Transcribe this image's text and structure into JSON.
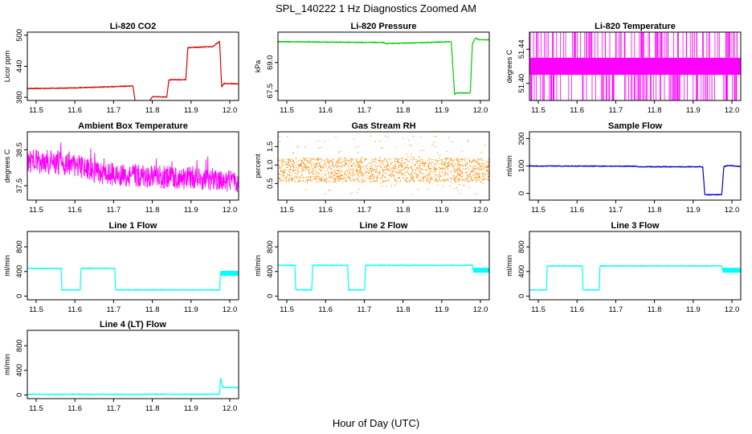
{
  "figure": {
    "title": "SPL_140222  1 Hz Diagnostics Zoomed AM",
    "xlabel": "Hour of Day (UTC)"
  },
  "chart_data": [
    {
      "type": "line",
      "title": "Li-820 CO2",
      "ylabel": "Licor ppm",
      "color": "#dd0000",
      "xlim": [
        11.5,
        12.0
      ],
      "ylim": [
        374,
        506
      ],
      "yticks": [
        "380",
        "440",
        "500"
      ],
      "ytick_values": [
        380,
        440,
        500
      ],
      "xticks": [
        "11.5",
        "11.6",
        "11.7",
        "11.8",
        "11.9",
        "12.0"
      ],
      "x": [
        11.5,
        11.6,
        11.75,
        11.755,
        11.79,
        11.795,
        11.83,
        11.835,
        11.875,
        11.88,
        11.94,
        11.945,
        11.955,
        11.96,
        11.965,
        12.0
      ],
      "values": [
        397,
        398,
        402,
        373,
        373,
        381,
        381,
        414,
        414,
        476,
        478,
        482,
        488,
        400,
        407,
        406
      ]
    },
    {
      "type": "line",
      "title": "Li-820 Pressure",
      "ylabel": "kPa",
      "color": "#00cc00",
      "xlim": [
        11.5,
        12.0
      ],
      "ylim": [
        67.0,
        70.6
      ],
      "yticks": [
        "67.5",
        "69.0"
      ],
      "ytick_values": [
        67.5,
        69.0
      ],
      "xticks": [
        "11.5",
        "11.6",
        "11.7",
        "11.8",
        "11.9",
        "12.0"
      ],
      "x": [
        11.5,
        11.75,
        11.755,
        11.85,
        11.91,
        11.918,
        11.922,
        11.955,
        11.96,
        11.968,
        11.975,
        12.0
      ],
      "values": [
        70.1,
        70.05,
        70.0,
        70.05,
        70.1,
        67.3,
        67.4,
        67.4,
        70.0,
        70.3,
        70.2,
        70.2
      ]
    },
    {
      "type": "line",
      "title": "Li-820 Temperature",
      "ylabel": "degrees C",
      "color": "#ff00ff",
      "xlim": [
        11.5,
        12.0
      ],
      "ylim": [
        51.38,
        51.46
      ],
      "yticks": [
        "51.40",
        "51.44"
      ],
      "ytick_values": [
        51.4,
        51.44
      ],
      "xticks": [
        "11.5",
        "11.6",
        "11.7",
        "11.8",
        "11.9",
        "12.0"
      ],
      "x": [
        11.5,
        12.0
      ],
      "values": [
        51.42,
        51.42
      ],
      "band_low": 51.41,
      "band_high": 51.43,
      "spike_min": 51.38,
      "spike_max": 51.46
    },
    {
      "type": "line",
      "title": "Ambient Box Temperature",
      "ylabel": "degrees C",
      "color": "#ff00ff",
      "xlim": [
        11.5,
        12.0
      ],
      "ylim": [
        37.1,
        39.0
      ],
      "yticks": [
        "37.5",
        "38.5"
      ],
      "ytick_values": [
        37.5,
        38.5
      ],
      "xticks": [
        "11.5",
        "11.6",
        "11.7",
        "11.8",
        "11.9",
        "12.0"
      ],
      "x": [
        11.5,
        11.6,
        11.7,
        11.8,
        11.9,
        12.0
      ],
      "values": [
        38.2,
        38.1,
        37.8,
        37.75,
        37.7,
        37.6
      ]
    },
    {
      "type": "scatter",
      "title": "Gas Stream RH",
      "ylabel": "percent",
      "color": "#ff8c00",
      "xlim": [
        11.5,
        12.0
      ],
      "ylim": [
        0.05,
        1.9
      ],
      "yticks": [
        "0.5",
        "1.0",
        "1.5"
      ],
      "ytick_values": [
        0.5,
        1.0,
        1.5
      ],
      "xticks": [
        "11.5",
        "11.6",
        "11.7",
        "11.8",
        "11.9",
        "12.0"
      ],
      "x": [
        11.5,
        12.0
      ],
      "values": [
        0.85,
        0.85
      ],
      "band_low": 0.55,
      "band_high": 1.2
    },
    {
      "type": "line",
      "title": "Sample Flow",
      "ylabel": "ml/min",
      "color": "#0000cc",
      "xlim": [
        11.5,
        12.0
      ],
      "ylim": [
        -25,
        225
      ],
      "yticks": [
        "0",
        "100",
        "200"
      ],
      "ytick_values": [
        0,
        100,
        200
      ],
      "xticks": [
        "11.5",
        "11.6",
        "11.7",
        "11.8",
        "11.9",
        "12.0"
      ],
      "x": [
        11.5,
        11.75,
        11.76,
        11.91,
        11.915,
        11.955,
        11.96,
        11.97,
        12.0
      ],
      "values": [
        100,
        99,
        97,
        97,
        -5,
        -5,
        98,
        102,
        98
      ]
    },
    {
      "type": "line",
      "title": "Line 1 Flow",
      "ylabel": "ml/min",
      "color": "#00ffff",
      "xlim": [
        11.5,
        12.0
      ],
      "ylim": [
        -60,
        1050
      ],
      "yticks": [
        "0",
        "400",
        "800"
      ],
      "ytick_values": [
        0,
        400,
        800
      ],
      "xticks": [
        "11.5",
        "11.6",
        "11.7",
        "11.8",
        "11.9",
        "12.0"
      ],
      "x": [
        11.5,
        11.58,
        11.582,
        11.625,
        11.627,
        11.707,
        11.709,
        11.955,
        11.957,
        12.0
      ],
      "values": [
        450,
        450,
        100,
        100,
        450,
        450,
        100,
        100,
        370,
        370
      ],
      "band_x_min": 11.957,
      "band_low": 330,
      "band_high": 410
    },
    {
      "type": "line",
      "title": "Line 2 Flow",
      "ylabel": "ml/min",
      "color": "#00ffff",
      "xlim": [
        11.5,
        12.0
      ],
      "ylim": [
        -60,
        1050
      ],
      "yticks": [
        "0",
        "400",
        "800"
      ],
      "ytick_values": [
        0,
        400,
        800
      ],
      "xticks": [
        "11.5",
        "11.6",
        "11.7",
        "11.8",
        "11.9",
        "12.0"
      ],
      "x": [
        11.5,
        11.54,
        11.542,
        11.58,
        11.582,
        11.665,
        11.667,
        11.705,
        11.707,
        11.96,
        11.962,
        12.0
      ],
      "values": [
        500,
        500,
        100,
        100,
        500,
        500,
        100,
        100,
        500,
        500,
        420,
        420
      ],
      "band_x_min": 11.962,
      "band_low": 380,
      "band_high": 460
    },
    {
      "type": "line",
      "title": "Line 3 Flow",
      "ylabel": "ml/min",
      "color": "#00ffff",
      "xlim": [
        11.5,
        12.0
      ],
      "ylim": [
        -60,
        1050
      ],
      "yticks": [
        "0",
        "400",
        "800"
      ],
      "ytick_values": [
        0,
        400,
        800
      ],
      "xticks": [
        "11.5",
        "11.6",
        "11.7",
        "11.8",
        "11.9",
        "12.0"
      ],
      "x": [
        11.5,
        11.54,
        11.542,
        11.625,
        11.627,
        11.665,
        11.667,
        11.955,
        11.957,
        12.0
      ],
      "values": [
        100,
        100,
        490,
        490,
        100,
        100,
        490,
        490,
        420,
        420
      ],
      "band_x_min": 11.957,
      "band_low": 380,
      "band_high": 460
    },
    {
      "type": "line",
      "title": "Line 4 (LT) Flow",
      "ylabel": "ml/min",
      "color": "#00ffff",
      "xlim": [
        11.5,
        12.0
      ],
      "ylim": [
        -60,
        1050
      ],
      "yticks": [
        "0",
        "400",
        "800"
      ],
      "ytick_values": [
        0,
        400,
        800
      ],
      "xticks": [
        "11.5",
        "11.6",
        "11.7",
        "11.8",
        "11.9",
        "12.0"
      ],
      "x": [
        11.5,
        11.955,
        11.957,
        11.962,
        11.964,
        12.0
      ],
      "values": [
        10,
        10,
        280,
        130,
        120,
        120
      ]
    }
  ]
}
